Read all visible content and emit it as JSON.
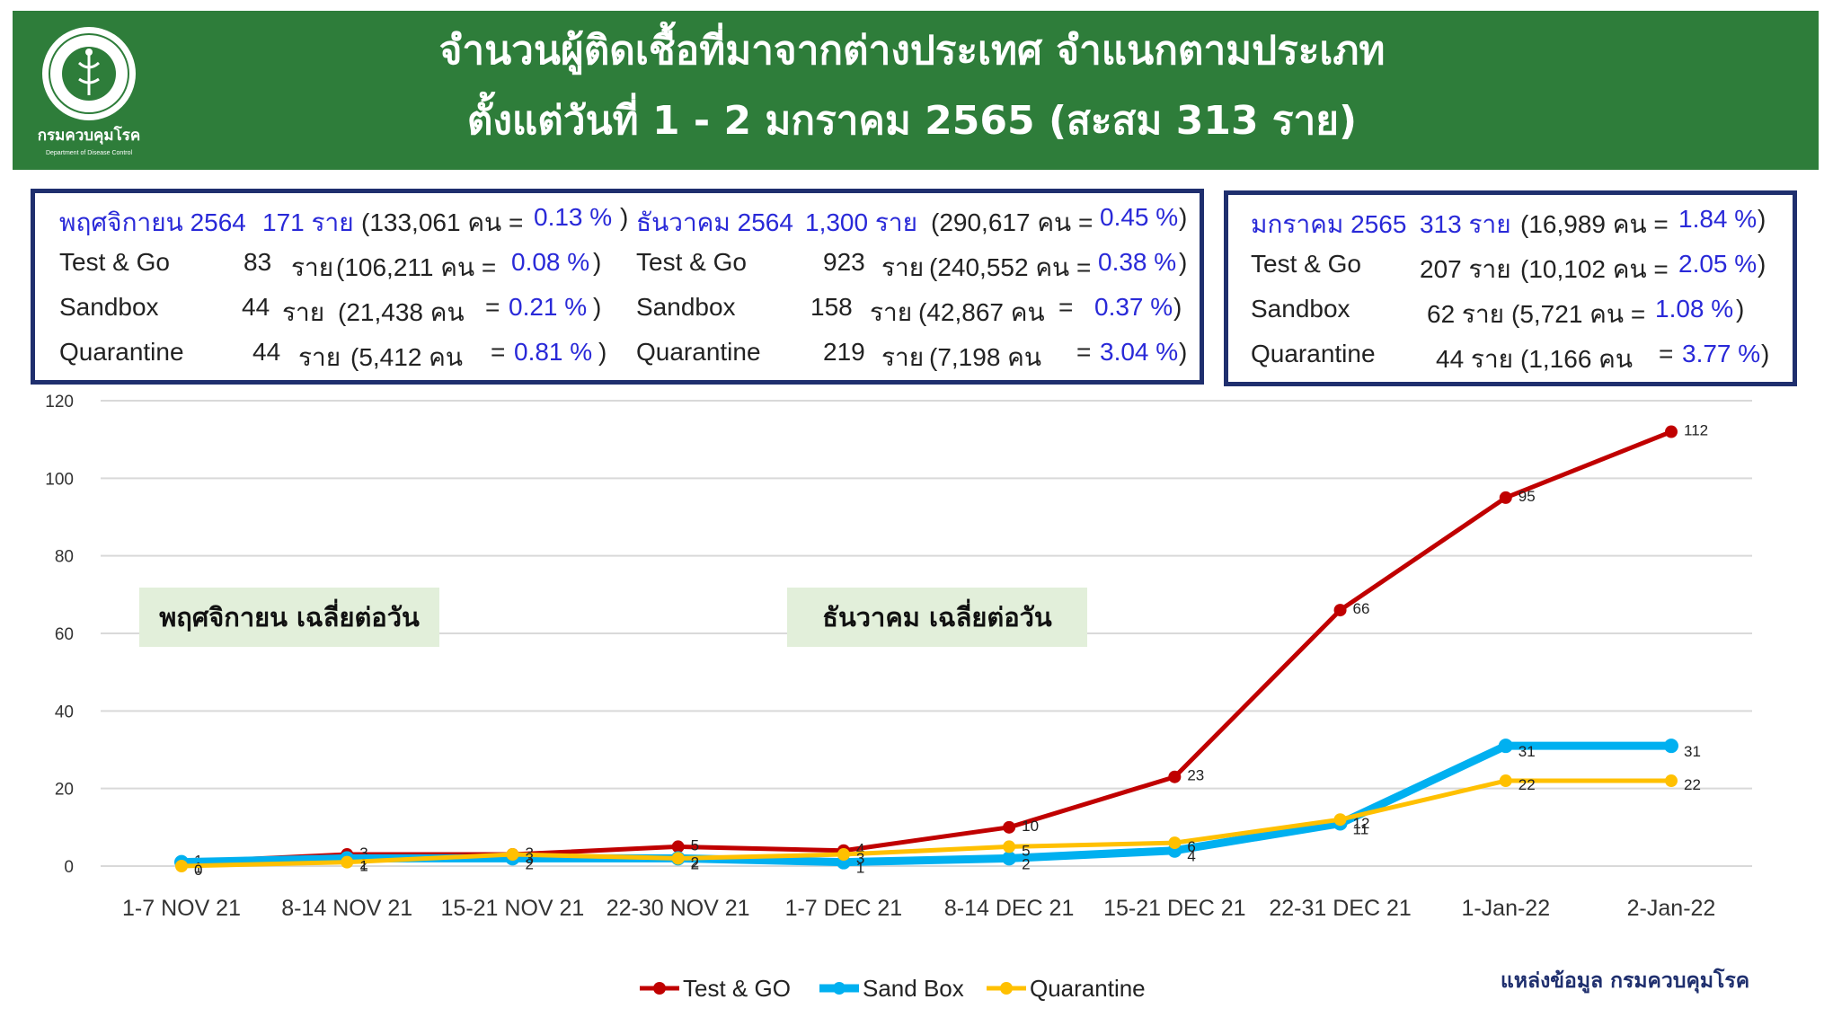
{
  "header": {
    "title_line1": "จำนวนผู้ติดเชื้อที่มาจากต่างประเทศ จำแนกตามประเภท",
    "title_line2": "ตั้งแต่วันที่  1 - 2  มกราคม  2565 (สะสม 313 ราย)",
    "logo_text": "กรมควบคุมโรค",
    "logo_subtext": "Department of Disease Control",
    "colors": {
      "banner": "#2e7d3a",
      "box_border": "#1f2f6e",
      "highlight": "#2929d8"
    }
  },
  "summary": {
    "november": {
      "header": [
        "พฤศจิกายน 2564",
        "171 ราย",
        "(133,061 คน = ",
        "0.13 %",
        ")"
      ],
      "rows": [
        [
          "Test & Go",
          "83",
          "ราย",
          "(106,211 คน = ",
          "0.08 %",
          ")"
        ],
        [
          "Sandbox",
          "44",
          "ราย",
          "(21,438 คน",
          "= ",
          "0.21 %",
          ")"
        ],
        [
          "Quarantine",
          "44",
          "ราย",
          "(5,412 คน",
          "= ",
          "0.81 %",
          ")"
        ]
      ]
    },
    "december": {
      "header": [
        "ธันวาคม 2564",
        "1,300 ราย",
        "(290,617 คน = ",
        "0.45 %",
        ")"
      ],
      "rows": [
        [
          "Test & Go",
          "923",
          "ราย",
          "(240,552 คน = ",
          "0.38 %",
          ")"
        ],
        [
          "Sandbox",
          "158",
          "ราย",
          "(42,867 คน",
          "= ",
          "0.37 %",
          ")"
        ],
        [
          "Quarantine",
          "219",
          "ราย",
          "(7,198 คน",
          "= ",
          "3.04 %",
          ")"
        ]
      ]
    },
    "january": {
      "header": [
        "มกราคม 2565",
        "313 ราย",
        "(16,989 คน = ",
        "1.84 %",
        ")"
      ],
      "rows": [
        [
          "Test & Go",
          "207 ราย",
          "(10,102 คน = ",
          "2.05 %",
          ")"
        ],
        [
          "Sandbox",
          "62 ราย",
          "(5,721 คน = ",
          "1.08 %",
          ")"
        ],
        [
          "Quarantine",
          "44 ราย",
          "(1,166 คน",
          "= ",
          "3.77 %",
          ")"
        ]
      ]
    }
  },
  "notes": {
    "november_avg": "พฤศจิกายน เฉลี่ยต่อวัน",
    "december_avg": "ธันวาคม เฉลี่ยต่อวัน"
  },
  "source": "แหล่งข้อมูล กรมควบคุมโรค",
  "chart_data": {
    "type": "line",
    "title": "",
    "xlabel": "",
    "ylabel": "",
    "categories": [
      "1-7 NOV 21",
      "8-14 NOV 21",
      "15-21 NOV 21",
      "22-30 NOV 21",
      "1-7 DEC 21",
      "8-14 DEC 21",
      "15-21 DEC 21",
      "22-31 DEC 21",
      "1-Jan-22",
      "2-Jan-22"
    ],
    "ylim": [
      0,
      120
    ],
    "yticks": [
      0,
      20,
      40,
      60,
      80,
      100,
      120
    ],
    "grid": true,
    "legend_position": "bottom",
    "series": [
      {
        "name": "Test & GO",
        "color": "#c00000",
        "values": [
          1,
          3,
          3,
          5,
          4,
          10,
          23,
          66,
          95,
          112
        ],
        "labels": [
          "1",
          "3",
          "3",
          "5",
          "4",
          "10",
          "23",
          "66",
          "95",
          "112"
        ]
      },
      {
        "name": "Sand Box",
        "color": "#00b0f0",
        "values": [
          1,
          2,
          2,
          2,
          1,
          2,
          4,
          11,
          31,
          31
        ],
        "labels": [
          "1",
          "2",
          "2",
          "2",
          "1",
          "2",
          "4",
          "11",
          "31",
          "31"
        ]
      },
      {
        "name": "Quarantine",
        "color": "#ffc000",
        "values": [
          0,
          1,
          3,
          2,
          3,
          5,
          6,
          12,
          22,
          22
        ],
        "labels": [
          "0",
          "1",
          "3",
          "2",
          "3",
          "5",
          "6",
          "12",
          "22",
          "22"
        ]
      }
    ]
  }
}
